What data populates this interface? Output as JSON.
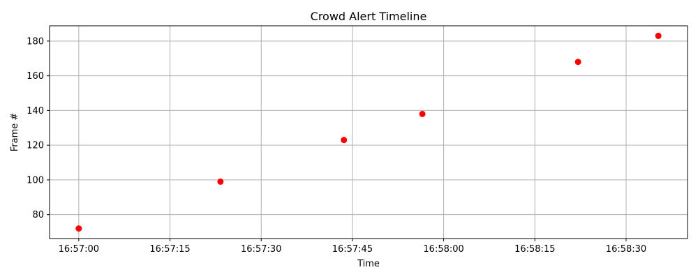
{
  "chart_data": {
    "type": "scatter",
    "title": "Crowd Alert Timeline",
    "xlabel": "Time",
    "ylabel": "Frame #",
    "x_axis_kind": "time",
    "x_values_seconds": [
      0,
      23.3,
      43.6,
      56.5,
      82.1,
      95.3
    ],
    "y_values": [
      72,
      99,
      123,
      138,
      168,
      183
    ],
    "xlim_seconds": [
      -4.8,
      100.1
    ],
    "ylim": [
      66.2,
      188.8
    ],
    "x_ticks_seconds": [
      0,
      15,
      30,
      45,
      60,
      75,
      90
    ],
    "x_tick_labels": [
      "16:57:00",
      "16:57:15",
      "16:57:30",
      "16:57:45",
      "16:58:00",
      "16:58:15",
      "16:58:30"
    ],
    "y_ticks": [
      80,
      100,
      120,
      140,
      160,
      180
    ],
    "y_tick_labels": [
      "80",
      "100",
      "120",
      "140",
      "160",
      "180"
    ],
    "grid": true,
    "marker_color": "#ff0000",
    "grid_color": "#b0b0b0"
  }
}
